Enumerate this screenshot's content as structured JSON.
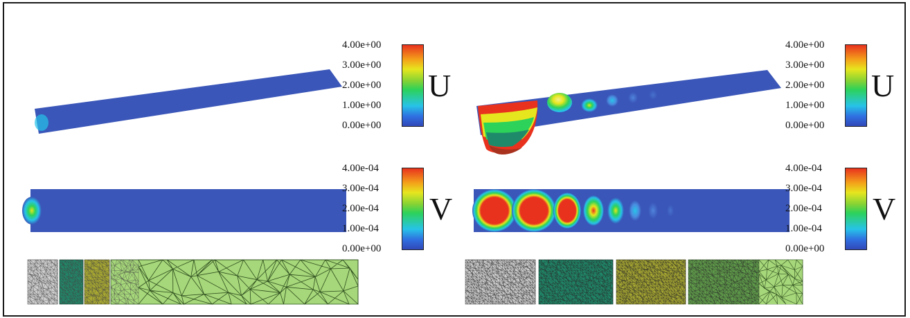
{
  "colorbars": {
    "u_left": {
      "ticks": [
        "4.00e+00",
        "3.00e+00",
        "2.00e+00",
        "1.00e+00",
        "0.00e+00"
      ],
      "label": "U"
    },
    "v_left": {
      "ticks": [
        "4.00e-04",
        "3.00e-04",
        "2.00e-04",
        "1.00e-04",
        "0.00e+00"
      ],
      "label": "V"
    },
    "u_right": {
      "ticks": [
        "4.00e+00",
        "3.00e+00",
        "2.00e+00",
        "1.00e+00",
        "0.00e+00"
      ],
      "label": "U"
    },
    "v_right": {
      "ticks": [
        "4.00e-04",
        "3.00e-04",
        "2.00e-04",
        "1.00e-04",
        "0.00e+00"
      ],
      "label": "V"
    }
  },
  "colors": {
    "field_base": "#3a56b8",
    "colormap": [
      "#3148b8",
      "#27c3e8",
      "#2dd25a",
      "#e6e61e",
      "#e8321e"
    ],
    "mesh_level_colors": [
      "#c8c8c8",
      "#1f8a6a",
      "#a8a832",
      "#a6d77a"
    ]
  }
}
